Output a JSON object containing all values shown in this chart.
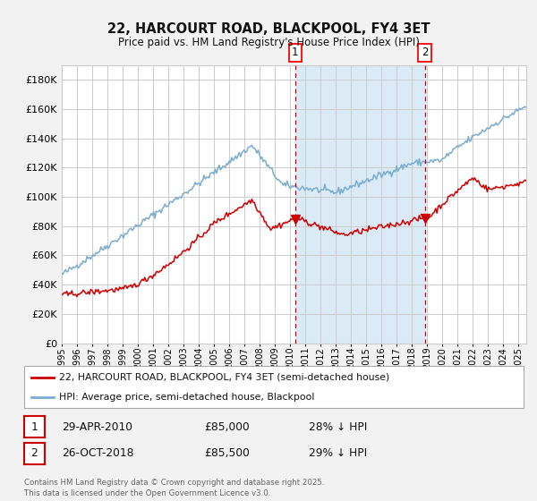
{
  "title": "22, HARCOURT ROAD, BLACKPOOL, FY4 3ET",
  "subtitle": "Price paid vs. HM Land Registry's House Price Index (HPI)",
  "background_color": "#f2f2f2",
  "plot_bg_color": "#ffffff",
  "shaded_region_color": "#daeaf7",
  "grid_color": "#cccccc",
  "red_line_color": "#cc0000",
  "blue_line_color": "#7aacce",
  "dashed_line_color": "#cc0000",
  "ylim": [
    0,
    190000
  ],
  "ytick_step": 20000,
  "marker1_date_x": 2010.33,
  "marker2_date_x": 2018.83,
  "marker1_y": 85000,
  "marker2_y": 85500,
  "legend_line1": "22, HARCOURT ROAD, BLACKPOOL, FY4 3ET (semi-detached house)",
  "legend_line2": "HPI: Average price, semi-detached house, Blackpool",
  "table_row1": [
    "1",
    "29-APR-2010",
    "£85,000",
    "28% ↓ HPI"
  ],
  "table_row2": [
    "2",
    "26-OCT-2018",
    "£85,500",
    "29% ↓ HPI"
  ],
  "footer": "Contains HM Land Registry data © Crown copyright and database right 2025.\nThis data is licensed under the Open Government Licence v3.0.",
  "xmin": 1995,
  "xmax": 2025.5
}
